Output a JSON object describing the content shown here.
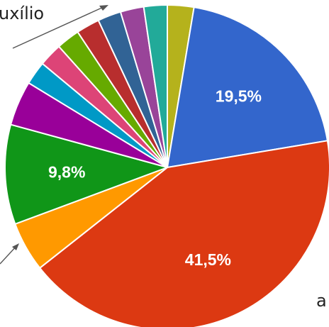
{
  "annotations": {
    "top_text": "uxílio",
    "bottom_text": "a"
  },
  "chart_data": {
    "type": "pie",
    "start_angle_deg": 90,
    "direction": "clockwise",
    "slices": [
      {
        "value": 2.6,
        "color": "#b5b21c"
      },
      {
        "value": 19.5,
        "color": "#3366cc",
        "label": "19,5%"
      },
      {
        "value": 41.5,
        "color": "#dc3912",
        "label": "41,5%"
      },
      {
        "value": 4.9,
        "color": "#ff9900"
      },
      {
        "value": 9.8,
        "color": "#109618",
        "label": "9,8%"
      },
      {
        "value": 4.4,
        "color": "#990099"
      },
      {
        "value": 2.3,
        "color": "#0099c6"
      },
      {
        "value": 2.3,
        "color": "#dd4477"
      },
      {
        "value": 2.3,
        "color": "#66aa00"
      },
      {
        "value": 2.3,
        "color": "#b82e2e"
      },
      {
        "value": 2.3,
        "color": "#316395"
      },
      {
        "value": 2.3,
        "color": "#994499"
      },
      {
        "value": 2.3,
        "color": "#22aa99"
      }
    ],
    "label_color": "#ffffff",
    "border_color": "#ffffff"
  }
}
